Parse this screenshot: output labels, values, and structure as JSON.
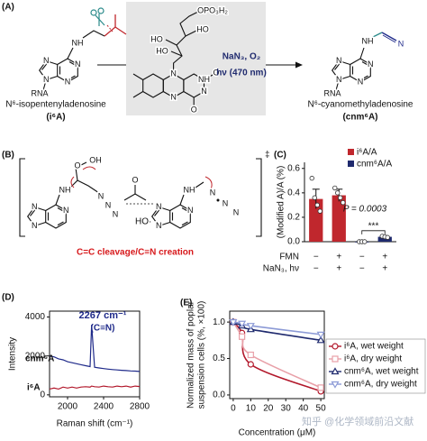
{
  "panel_a": {
    "label": "(A)",
    "left": {
      "name": "N⁶-isopentenyladenosine",
      "abbr": "(i⁶A)",
      "atoms": [
        "NH",
        "N",
        "N",
        "N",
        "N",
        "RNA"
      ]
    },
    "flavin_atoms": [
      "OPO₃H₂",
      "HO",
      "HO",
      "HO",
      "N",
      "N",
      "N",
      "NH",
      "O",
      "O"
    ],
    "conditions": [
      "NaN₃, O₂",
      "hν (470 nm)"
    ],
    "right": {
      "name": "N⁶-cyanomethyladenosine",
      "abbr": "(cnm⁶A)",
      "atoms": [
        "NH",
        "N",
        "N",
        "N",
        "N",
        "RNA",
        "N"
      ]
    }
  },
  "panel_b": {
    "label": "(B)",
    "dagger": "‡",
    "atoms": [
      "O",
      "OH",
      "NH",
      "N",
      "N",
      "N",
      "N",
      "N",
      "N",
      "HO·",
      "O",
      "NH",
      "N",
      "N",
      "N",
      "N",
      "N",
      "N"
    ],
    "caption": "C=C cleavage/C≡N creation"
  },
  "chart_data": [
    {
      "type": "bar",
      "label": "(C)",
      "ylabel": "(Modified A)/A (%)",
      "ylim": [
        0,
        0.65
      ],
      "yticks": [
        {
          "value": 0,
          "label": "0.0"
        },
        0.2,
        0.4,
        0.6
      ],
      "series": [
        {
          "name": "i⁶A/A",
          "color": "#c0272d",
          "values": [
            0.35,
            0.38,
            null,
            null
          ],
          "errors": [
            0.08,
            0.05,
            null,
            null
          ],
          "points": [
            [
              0.52,
              0.36,
              0.3,
              0.25
            ],
            [
              0.44,
              0.4,
              0.36,
              0.32
            ],
            null,
            null
          ]
        },
        {
          "name": "cnm⁶A/A",
          "color": "#1f2a6e",
          "values": [
            null,
            null,
            0,
            0.04
          ],
          "errors": [
            null,
            null,
            0,
            0.008
          ],
          "points": [
            null,
            null,
            [
              0,
              0,
              0
            ],
            [
              0.045,
              0.04,
              0.035
            ]
          ]
        }
      ],
      "conditions": [
        {
          "name": "FMN",
          "values": [
            "−",
            "+",
            "−",
            "+"
          ]
        },
        {
          "name": "NaN₃, hν",
          "values": [
            "−",
            "+",
            "−",
            "+"
          ]
        }
      ],
      "annotation": "P = 0.0003",
      "significance": "***"
    },
    {
      "type": "line",
      "label": "(D)",
      "xlabel": "Raman shift (cm⁻¹)",
      "ylabel": "Intensity",
      "x": [
        1800,
        1850,
        1900,
        1950,
        2000,
        2050,
        2100,
        2150,
        2200,
        2250,
        2267,
        2300,
        2350,
        2400,
        2450,
        2500,
        2550,
        2600,
        2650,
        2700,
        2750,
        2800
      ],
      "xlim": [
        1800,
        2800
      ],
      "xticks": [
        2000,
        2400,
        2800
      ],
      "ylim": [
        -100,
        4300
      ],
      "yticks": [
        0,
        2000,
        4000
      ],
      "series": [
        {
          "name": "cnm⁶A",
          "color": "#1f2a8a",
          "values": [
            2000,
            1950,
            1850,
            1800,
            1700,
            1650,
            1600,
            1550,
            1500,
            1450,
            3600,
            1420,
            1380,
            1350,
            1320,
            1300,
            1280,
            1260,
            1250,
            1230,
            1220,
            1200
          ]
        },
        {
          "name": "i⁶A",
          "color": "#b2182b",
          "values": [
            300,
            350,
            300,
            400,
            350,
            400,
            350,
            400,
            420,
            400,
            450,
            420,
            400,
            450,
            420,
            400,
            450,
            420,
            450,
            400,
            450,
            430
          ]
        }
      ],
      "annotations": [
        "2267 cm⁻¹",
        "(C≡N)"
      ]
    },
    {
      "type": "scatter",
      "label": "(E)",
      "xlabel": "Concentration (μM)",
      "ylabel": [
        "Normalized mass of poplar",
        "suspension cells (%, ×100)"
      ],
      "xlim": [
        -2,
        52
      ],
      "xticks": [
        0,
        10,
        20,
        30,
        40,
        50
      ],
      "ylim": [
        -0.05,
        1.15
      ],
      "yticks": [
        {
          "value": 0,
          "label": "0.0"
        },
        0.5,
        {
          "value": 1,
          "label": "1.0"
        }
      ],
      "series": [
        {
          "name": "i⁶A, wet weight",
          "color": "#b2182b",
          "marker": "circle",
          "x": [
            0,
            5,
            10,
            50
          ],
          "values": [
            1.0,
            0.85,
            0.42,
            0.05
          ]
        },
        {
          "name": "i⁶A, dry weight",
          "color": "#e8a0a8",
          "marker": "square",
          "x": [
            0,
            5,
            10,
            50
          ],
          "values": [
            1.0,
            0.8,
            0.55,
            0.1
          ]
        },
        {
          "name": "cnm⁶A, wet weight",
          "color": "#1f2a6e",
          "marker": "triangle",
          "x": [
            0,
            5,
            10,
            50
          ],
          "values": [
            1.0,
            0.95,
            0.9,
            0.75
          ]
        },
        {
          "name": "cnm⁶A, dry weight",
          "color": "#8c9ad6",
          "marker": "triangle-down",
          "x": [
            0,
            5,
            10,
            50
          ],
          "values": [
            1.0,
            0.98,
            0.95,
            0.83
          ]
        }
      ]
    }
  ],
  "watermark": "知乎 @化学领域前沿文献"
}
